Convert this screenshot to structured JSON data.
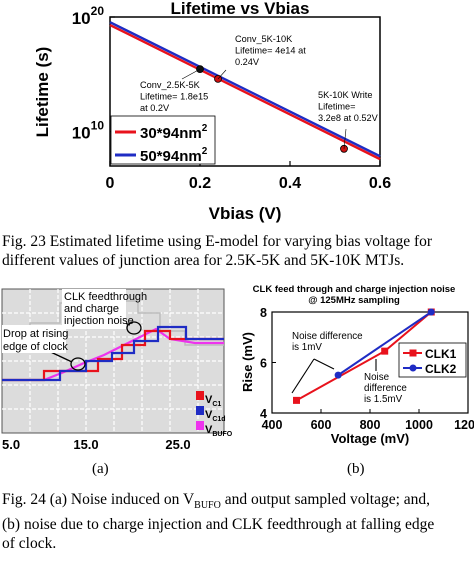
{
  "fig23": {
    "chart_data": {
      "type": "line",
      "title": "Lifetime vs Vbias",
      "xlabel": "Vbias (V)",
      "ylabel": "Lifetime (s)",
      "xlim": [
        0,
        0.6
      ],
      "y_scale": "log",
      "ylim_log10": [
        7,
        20
      ],
      "x_ticks": [
        "0",
        "0.2",
        "0.4",
        "0.6"
      ],
      "y_ticks": [
        {
          "base": "10",
          "exp": "20",
          "log10": 20
        },
        {
          "base": "10",
          "exp": "10",
          "log10": 10
        }
      ],
      "legend_position": "bottom-left",
      "series": [
        {
          "name_base": "30*94nm",
          "name_exp": "2",
          "color": "#e8121c",
          "x": [
            0,
            0.6
          ],
          "log10_y": [
            19.3,
            7.6
          ]
        },
        {
          "name_base": "50*94nm",
          "name_exp": "2",
          "color": "#1f2cc4",
          "x": [
            0,
            0.6
          ],
          "log10_y": [
            19.55,
            7.85
          ]
        }
      ],
      "points": [
        {
          "x": 0.2,
          "log10_y": 15.45,
          "text": [
            "Conv_2.5K-5K",
            "Lifetime= 1.8e15",
            "at 0.2V"
          ]
        },
        {
          "x": 0.24,
          "log10_y": 14.6,
          "text": [
            "Conv_5K-10K",
            "Lifetime= 4e14 at",
            "0.24V"
          ]
        },
        {
          "x": 0.52,
          "log10_y": 8.5,
          "text": [
            "5K-10K Write",
            "Lifetime=",
            "3.2e8 at 0.52V"
          ]
        }
      ]
    },
    "caption": [
      "Fig. 23 Estimated lifetime using E-model for varying bias voltage for",
      "different values of junction area for 2.5K-5K and 5K-10K MTJs."
    ]
  },
  "fig24a": {
    "annotations": [
      "CLK feedthrough",
      "and charge",
      "injection noise",
      "Drop at rising",
      "edge of clock"
    ],
    "legend": [
      {
        "base": "V",
        "sub": "C1",
        "color": "#e8121c"
      },
      {
        "base": "V",
        "sub": "C1d",
        "color": "#1f2cc4"
      },
      {
        "base": "V",
        "sub": "BUFO",
        "color": "#ee33ee"
      }
    ],
    "x_ticks": [
      "5.0",
      "15.0",
      "25.0"
    ],
    "label": "(a)"
  },
  "fig24b": {
    "chart_data": {
      "type": "line",
      "title": [
        "CLK feed through and charge injection noise",
        "@ 125MHz sampling"
      ],
      "xlabel": "Voltage (mV)",
      "ylabel": "Rise (mV)",
      "xlim": [
        400,
        1200
      ],
      "ylim": [
        4,
        8
      ],
      "x_ticks": [
        400,
        600,
        800,
        1000,
        1200
      ],
      "y_ticks": [
        4,
        6,
        8
      ],
      "legend_position": "right",
      "series": [
        {
          "name": "CLK1",
          "color": "#e8121c",
          "marker": "square",
          "x": [
            500,
            860,
            1050
          ],
          "y": [
            4.5,
            6.45,
            8.0
          ]
        },
        {
          "name": "CLK2",
          "color": "#1f2cc4",
          "marker": "circle",
          "x": [
            670,
            1050
          ],
          "y": [
            5.5,
            8.0
          ]
        }
      ],
      "annotations": [
        {
          "text": [
            "Noise difference",
            "is 1mV"
          ]
        },
        {
          "text": [
            "Noise",
            "difference",
            "is 1.5mV"
          ]
        }
      ]
    },
    "label": "(b)"
  },
  "fig24_caption": {
    "line1_pre": "Fig. 24 (a) Noise induced on V",
    "line1_sub": "BUFO",
    "line1_post": " and output sampled voltage; and,",
    "line2": "(b) noise due to charge injection and CLK feedthrough at falling edge",
    "line3": "of clock."
  }
}
